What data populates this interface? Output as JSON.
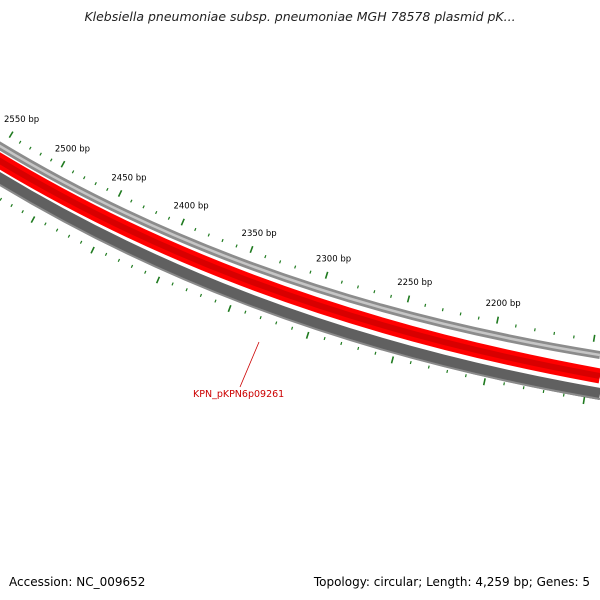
{
  "title": "Klebsiella pneumoniae subsp. pneumoniae MGH 78578 plasmid pK...",
  "accession": "Accession: NC_009652",
  "summary": "Topology: circular; Length: 4,259 bp; Genes: 5",
  "colors": {
    "ticks": "#1f7a1f",
    "gene_forward": "#ff0000",
    "gene_label": "#cc0000",
    "outer_ring": "#8c8c8c",
    "inner_ring": "#606060"
  },
  "ruler": {
    "unit": "bp",
    "labels": [
      "2550 bp",
      "2500 bp",
      "2450 bp",
      "2400 bp",
      "2350 bp",
      "2300 bp",
      "2250 bp",
      "2200 bp"
    ]
  },
  "genes": [
    {
      "label": "KPN_pKPN6p09261",
      "strand": "forward"
    }
  ]
}
